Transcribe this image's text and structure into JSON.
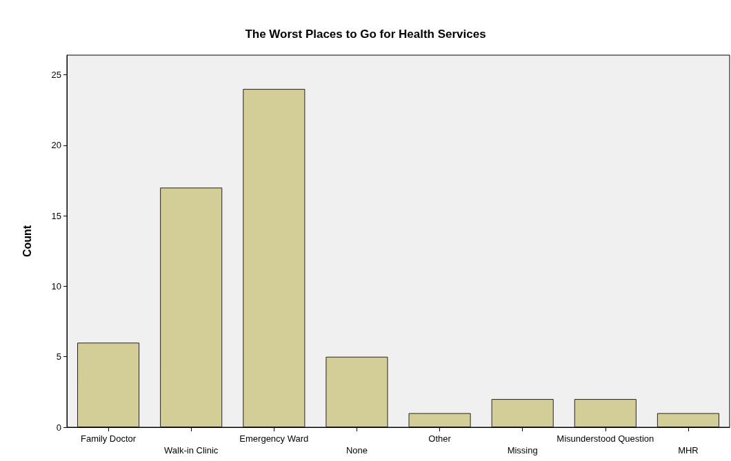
{
  "chart_data": {
    "type": "bar",
    "title": "The Worst Places to Go for Health Services",
    "ylabel": "Count",
    "categories": [
      "Family Doctor",
      "Walk-in Clinic",
      "Emergency Ward",
      "None",
      "Other",
      "Missing",
      "Misunderstood Question",
      "MHR"
    ],
    "values": [
      6,
      17,
      24,
      5,
      1,
      2,
      2,
      1
    ],
    "color": "#d3ce97",
    "ylim": [
      0,
      26.4
    ],
    "yticks": [
      0,
      5,
      10,
      15,
      20,
      25
    ],
    "grid": false
  }
}
